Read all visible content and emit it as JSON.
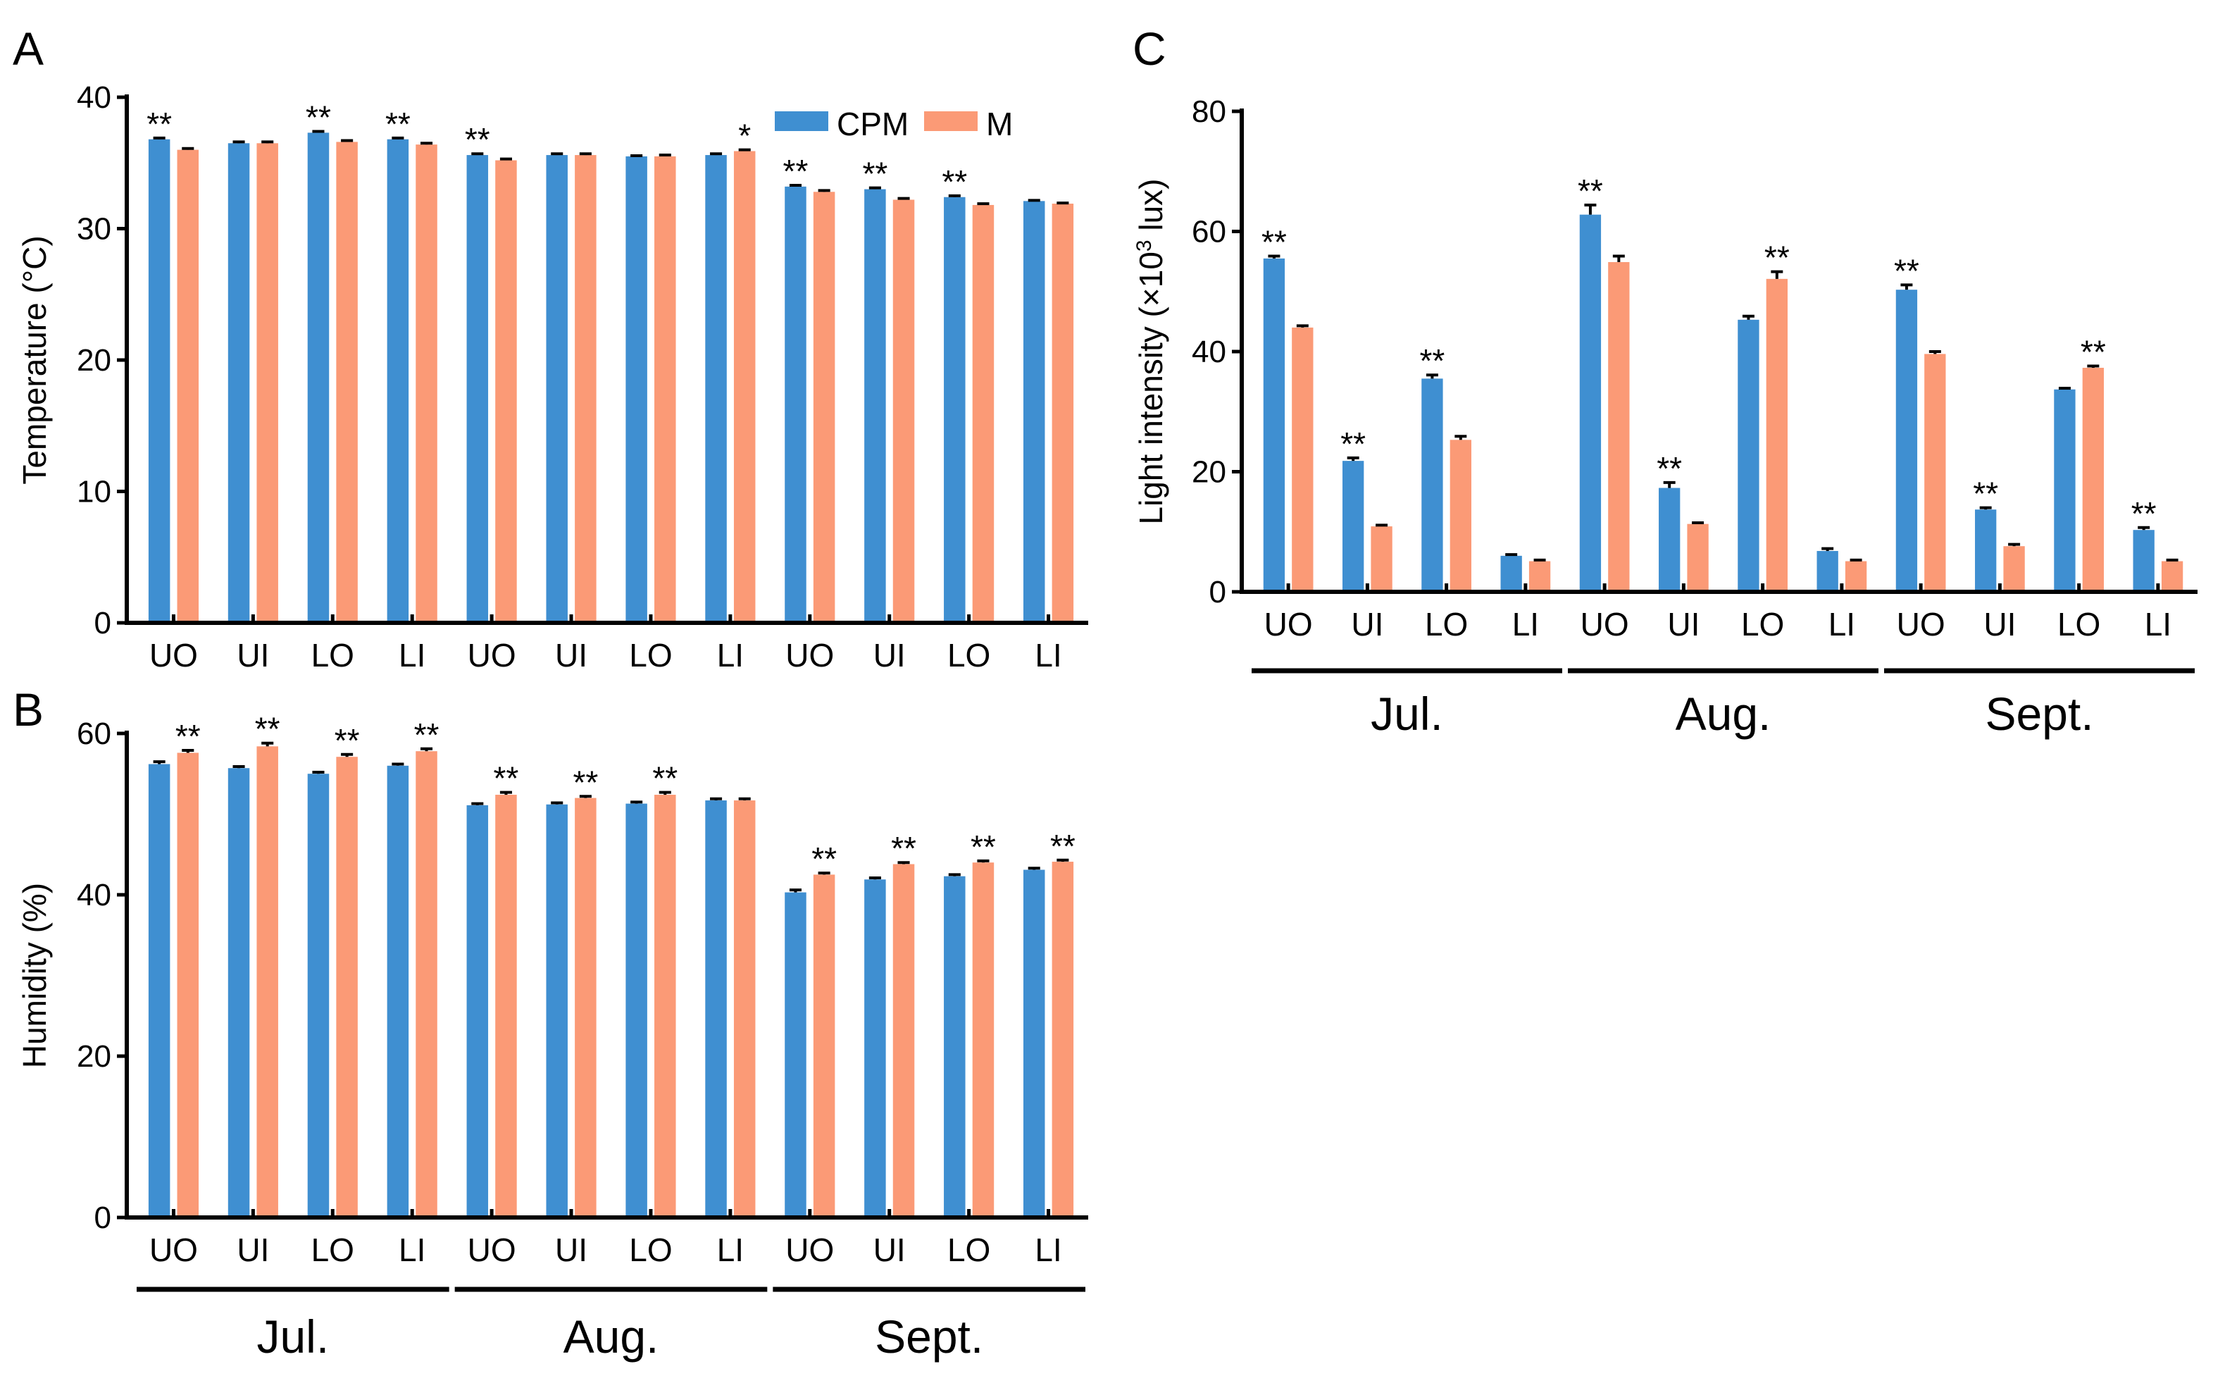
{
  "colors": {
    "CPM": "#3f8fd1",
    "M": "#fb9a76"
  },
  "legend": {
    "cpm": "CPM",
    "m": "M"
  },
  "chart_data": [
    {
      "id": "A",
      "panel_label": "A",
      "type": "bar",
      "ylabel": "Temperature (°C)",
      "ylim": [
        0,
        40
      ],
      "yticks": [
        "0",
        "10",
        "20",
        "30",
        "40"
      ],
      "categories": [
        "UO",
        "UI",
        "LO",
        "LI",
        "UO",
        "UI",
        "LO",
        "LI",
        "UO",
        "UI",
        "LO",
        "LI"
      ],
      "series": [
        {
          "name": "CPM",
          "values": [
            36.8,
            36.5,
            37.3,
            36.8,
            35.6,
            35.6,
            35.5,
            35.6,
            33.2,
            33.0,
            32.4,
            32.1
          ],
          "errors": [
            0.1,
            0.1,
            0.1,
            0.1,
            0.1,
            0.1,
            0.05,
            0.1,
            0.1,
            0.1,
            0.1,
            0.05
          ]
        },
        {
          "name": "M",
          "values": [
            36.0,
            36.5,
            36.6,
            36.4,
            35.2,
            35.6,
            35.5,
            35.9,
            32.8,
            32.2,
            31.8,
            31.9
          ],
          "errors": [
            0.1,
            0.1,
            0.1,
            0.1,
            0.1,
            0.1,
            0.1,
            0.1,
            0.1,
            0.1,
            0.1,
            0.05
          ]
        }
      ],
      "significance": [
        {
          "index": 0,
          "series": "CPM",
          "label": "**"
        },
        {
          "index": 2,
          "series": "CPM",
          "label": "**"
        },
        {
          "index": 3,
          "series": "CPM",
          "label": "**"
        },
        {
          "index": 4,
          "series": "CPM",
          "label": "**"
        },
        {
          "index": 7,
          "series": "M",
          "label": "*"
        },
        {
          "index": 8,
          "series": "CPM",
          "label": "**"
        },
        {
          "index": 9,
          "series": "CPM",
          "label": "**"
        },
        {
          "index": 10,
          "series": "CPM",
          "label": "**"
        }
      ],
      "groups": []
    },
    {
      "id": "B",
      "panel_label": "B",
      "type": "bar",
      "ylabel": "Humidity (%)",
      "ylim": [
        0,
        60
      ],
      "yticks": [
        "0",
        "20",
        "40",
        "60"
      ],
      "categories": [
        "UO",
        "UI",
        "LO",
        "LI",
        "UO",
        "UI",
        "LO",
        "LI",
        "UO",
        "UI",
        "LO",
        "LI"
      ],
      "series": [
        {
          "name": "CPM",
          "values": [
            56.2,
            55.7,
            55.0,
            56.0,
            51.1,
            51.2,
            51.3,
            51.7,
            40.3,
            41.9,
            42.3,
            43.1
          ],
          "errors": [
            0.3,
            0.2,
            0.2,
            0.2,
            0.2,
            0.2,
            0.2,
            0.2,
            0.3,
            0.2,
            0.2,
            0.2
          ]
        },
        {
          "name": "M",
          "values": [
            57.6,
            58.4,
            57.1,
            57.8,
            52.4,
            52.0,
            52.4,
            51.7,
            42.5,
            43.8,
            44.0,
            44.1
          ],
          "errors": [
            0.3,
            0.4,
            0.3,
            0.3,
            0.3,
            0.2,
            0.3,
            0.2,
            0.2,
            0.2,
            0.2,
            0.2
          ]
        }
      ],
      "significance": [
        {
          "index": 0,
          "series": "M",
          "label": "**"
        },
        {
          "index": 1,
          "series": "M",
          "label": "**"
        },
        {
          "index": 2,
          "series": "M",
          "label": "**"
        },
        {
          "index": 3,
          "series": "M",
          "label": "**"
        },
        {
          "index": 4,
          "series": "M",
          "label": "**"
        },
        {
          "index": 5,
          "series": "M",
          "label": "**"
        },
        {
          "index": 6,
          "series": "M",
          "label": "**"
        },
        {
          "index": 8,
          "series": "M",
          "label": "**"
        },
        {
          "index": 9,
          "series": "M",
          "label": "**"
        },
        {
          "index": 10,
          "series": "M",
          "label": "**"
        },
        {
          "index": 11,
          "series": "M",
          "label": "**"
        }
      ],
      "groups": [
        {
          "label": "Jul.",
          "from": 0,
          "to": 3
        },
        {
          "label": "Aug.",
          "from": 4,
          "to": 7
        },
        {
          "label": "Sept.",
          "from": 8,
          "to": 11
        }
      ]
    },
    {
      "id": "C",
      "panel_label": "C",
      "type": "bar",
      "ylabel_main": "Light intensity (×10",
      "ylabel_sup": "3",
      "ylabel_tail": " lux)",
      "ylim": [
        0,
        80
      ],
      "yticks": [
        "0",
        "20",
        "40",
        "60",
        "80"
      ],
      "categories": [
        "UO",
        "UI",
        "LO",
        "LI",
        "UO",
        "UI",
        "LO",
        "LI",
        "UO",
        "UI",
        "LO",
        "LI"
      ],
      "series": [
        {
          "name": "CPM",
          "values": [
            55.5,
            21.8,
            35.5,
            6.0,
            62.8,
            17.3,
            45.3,
            6.8,
            50.3,
            13.7,
            33.7,
            10.3
          ],
          "errors": [
            0.4,
            0.5,
            0.6,
            0.2,
            1.6,
            0.9,
            0.6,
            0.4,
            0.8,
            0.3,
            0.2,
            0.4
          ]
        },
        {
          "name": "M",
          "values": [
            44.0,
            10.9,
            25.3,
            5.1,
            54.9,
            11.3,
            52.1,
            5.1,
            39.6,
            7.6,
            37.3,
            5.1
          ],
          "errors": [
            0.3,
            0.2,
            0.6,
            0.2,
            1.0,
            0.2,
            1.2,
            0.2,
            0.4,
            0.3,
            0.3,
            0.2
          ]
        }
      ],
      "significance": [
        {
          "index": 0,
          "series": "CPM",
          "label": "**"
        },
        {
          "index": 1,
          "series": "CPM",
          "label": "**"
        },
        {
          "index": 2,
          "series": "CPM",
          "label": "**"
        },
        {
          "index": 4,
          "series": "CPM",
          "label": "**"
        },
        {
          "index": 5,
          "series": "CPM",
          "label": "**"
        },
        {
          "index": 6,
          "series": "M",
          "label": "**"
        },
        {
          "index": 8,
          "series": "CPM",
          "label": "**"
        },
        {
          "index": 9,
          "series": "CPM",
          "label": "**"
        },
        {
          "index": 10,
          "series": "M",
          "label": "**"
        },
        {
          "index": 11,
          "series": "CPM",
          "label": "**"
        }
      ],
      "groups": [
        {
          "label": "Jul.",
          "from": 0,
          "to": 3
        },
        {
          "label": "Aug.",
          "from": 4,
          "to": 7
        },
        {
          "label": "Sept.",
          "from": 8,
          "to": 11
        }
      ]
    }
  ]
}
